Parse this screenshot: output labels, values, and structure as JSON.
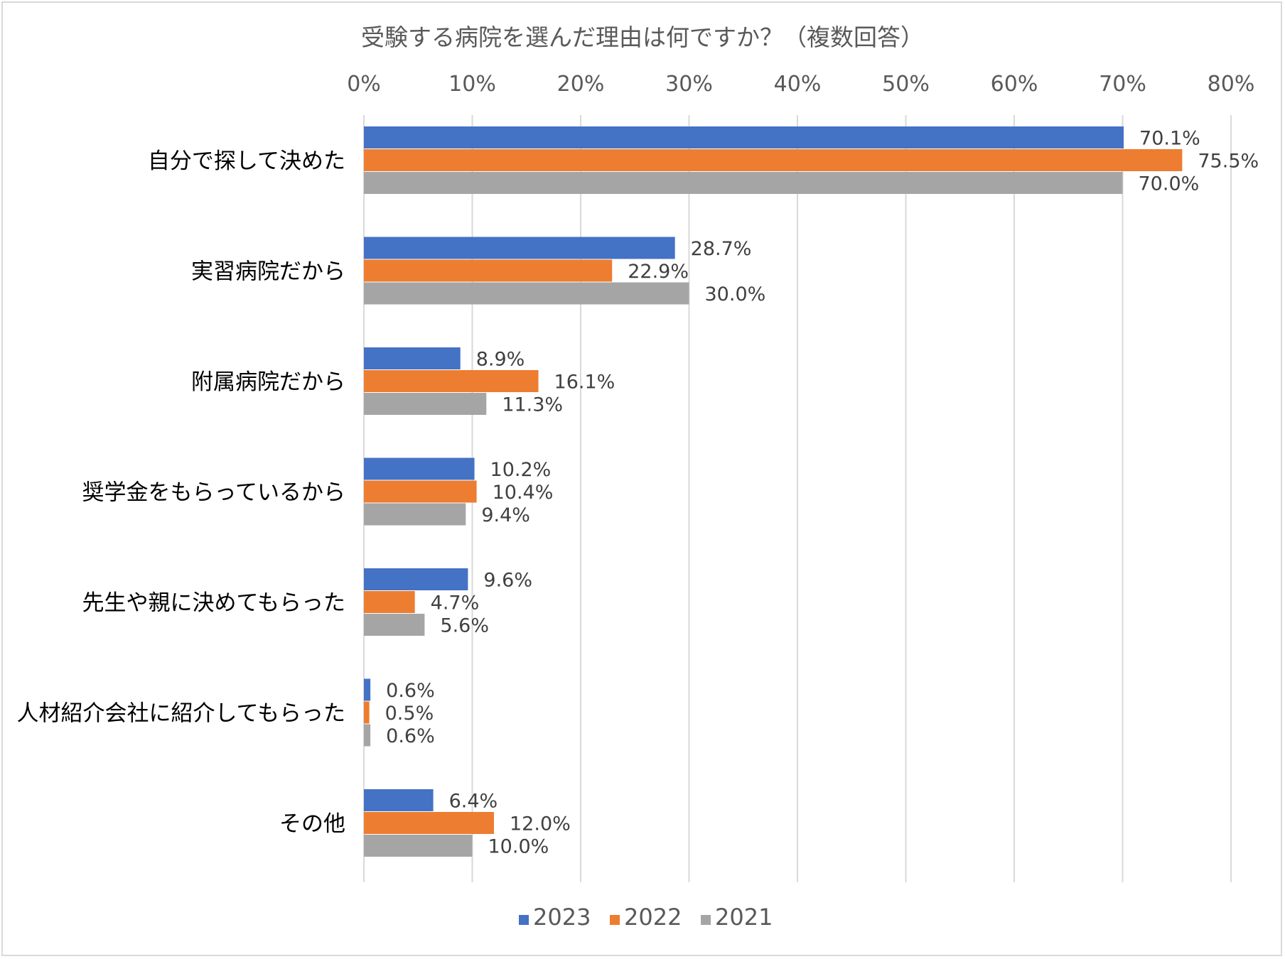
{
  "chart_data": {
    "type": "bar",
    "orientation": "horizontal",
    "title": "受験する病院を選んだ理由は何ですか？（複数回答）",
    "xlabel": "",
    "ylabel": "",
    "xlim": [
      0,
      80
    ],
    "tick_values": [
      0,
      10,
      20,
      30,
      40,
      50,
      60,
      70,
      80
    ],
    "tick_labels": [
      "0%",
      "10%",
      "20%",
      "30%",
      "40%",
      "50%",
      "60%",
      "70%",
      "80%"
    ],
    "grid": true,
    "legend_position": "bottom",
    "categories": [
      "自分で探して決めた",
      "実習病院だから",
      "附属病院だから",
      "奨学金をもらっているから",
      "先生や親に決めてもらった",
      "人材紹介会社に紹介してもらった",
      "その他"
    ],
    "series": [
      {
        "name": "2023",
        "color": "#4472c4",
        "values": [
          70.1,
          28.7,
          8.9,
          10.2,
          9.6,
          0.6,
          6.4
        ],
        "labels": [
          "70.1%",
          "28.7%",
          "8.9%",
          "10.2%",
          "9.6%",
          "0.6%",
          "6.4%"
        ]
      },
      {
        "name": "2022",
        "color": "#ed7d31",
        "values": [
          75.5,
          22.9,
          16.1,
          10.4,
          4.7,
          0.5,
          12.0
        ],
        "labels": [
          "75.5%",
          "22.9%",
          "16.1%",
          "10.4%",
          "4.7%",
          "0.5%",
          "12.0%"
        ]
      },
      {
        "name": "2021",
        "color": "#a5a5a5",
        "values": [
          70.0,
          30.0,
          11.3,
          9.4,
          5.6,
          0.6,
          10.0
        ],
        "labels": [
          "70.0%",
          "30.0%",
          "11.3%",
          "9.4%",
          "5.6%",
          "0.6%",
          "10.0%"
        ]
      }
    ]
  }
}
